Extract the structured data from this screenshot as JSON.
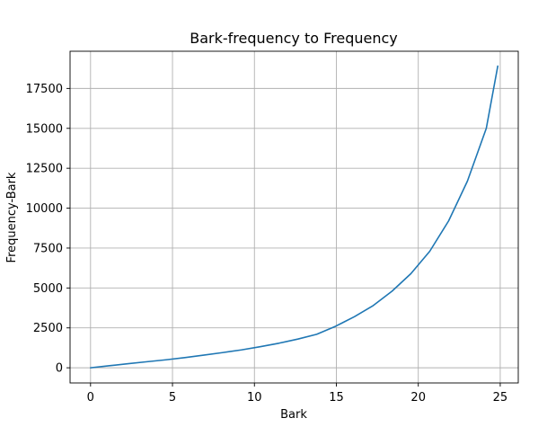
{
  "chart_data": {
    "type": "line",
    "title": "Bark-frequency to Frequency",
    "xlabel": "Bark",
    "ylabel": "Frequency-Bark",
    "xlim": [
      -1.25,
      26.1
    ],
    "ylim": [
      -950,
      19830
    ],
    "x_ticks": [
      0,
      5,
      10,
      15,
      20,
      25
    ],
    "x_tick_labels": [
      "0",
      "5",
      "10",
      "15",
      "20",
      "25"
    ],
    "y_ticks": [
      0,
      2500,
      5000,
      7500,
      10000,
      12500,
      15000,
      17500
    ],
    "y_tick_labels": [
      "0",
      "2500",
      "5000",
      "7500",
      "10000",
      "12500",
      "15000",
      "17500"
    ],
    "grid": true,
    "legend": "none",
    "series": [
      {
        "color": "#1f77b4",
        "x": [
          0,
          1.15,
          2.3,
          3.45,
          4.6,
          5.75,
          6.9,
          8.05,
          9.2,
          10.35,
          11.5,
          12.65,
          13.8,
          14.95,
          16.1,
          17.25,
          18.4,
          19.55,
          20.7,
          21.85,
          23.0,
          24.15,
          24.85
        ],
        "y": [
          0,
          130,
          255,
          380,
          500,
          640,
          790,
          950,
          1120,
          1320,
          1540,
          1800,
          2100,
          2600,
          3200,
          3900,
          4800,
          5900,
          7300,
          9200,
          11700,
          15000,
          18900
        ]
      }
    ]
  }
}
